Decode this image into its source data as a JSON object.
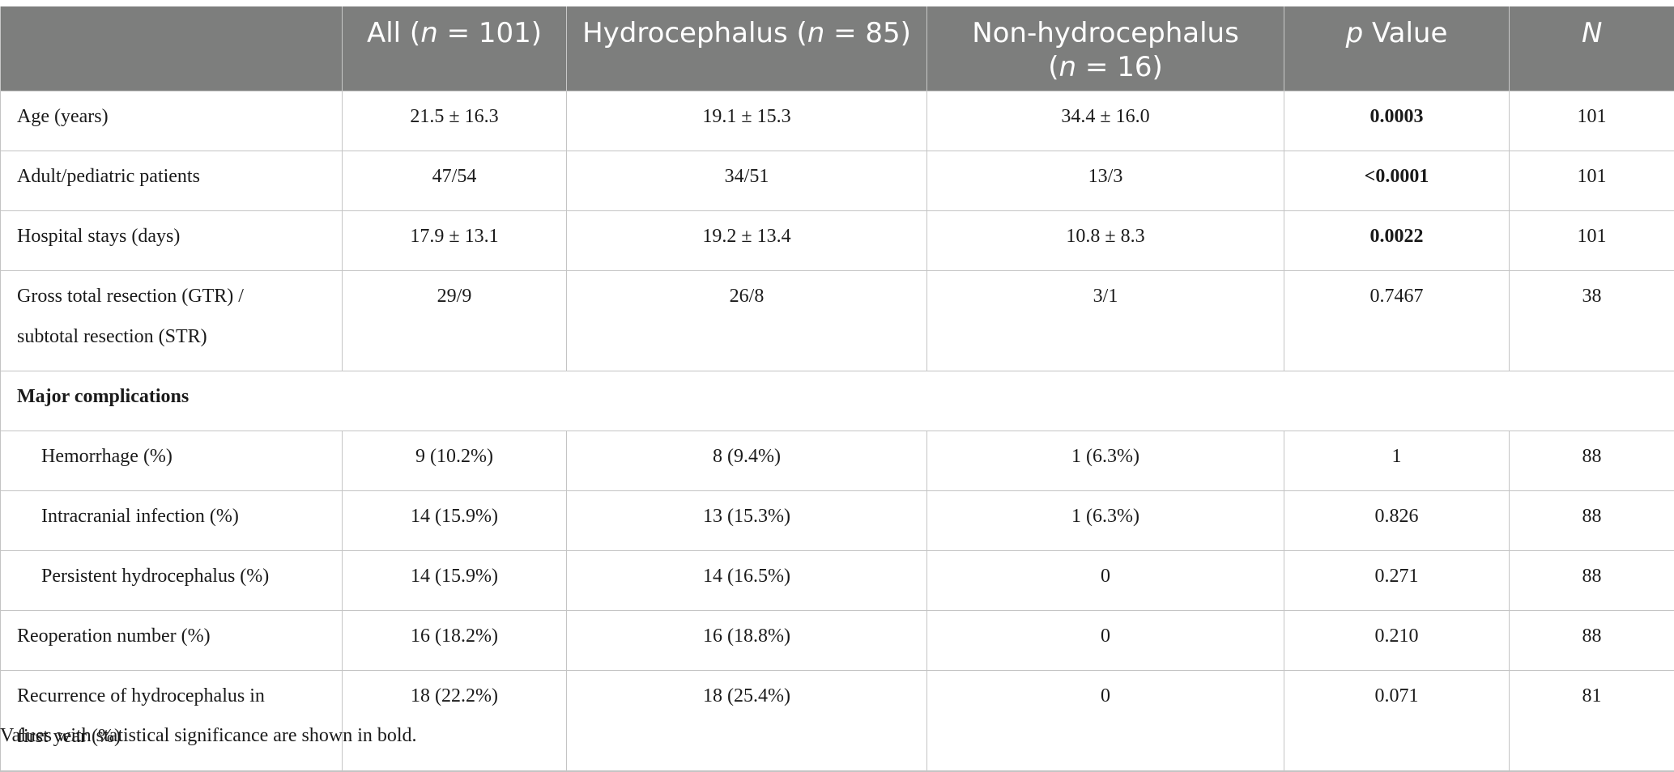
{
  "header": {
    "col0": "",
    "col1_pre": "All (",
    "col1_n": "n",
    "col1_post": " = 101)",
    "col2_pre": "Hydrocephalus (",
    "col2_n": "n",
    "col2_post": " = 85)",
    "col3_line1": "Non-hydrocephalus",
    "col3_pre": "(",
    "col3_n": "n",
    "col3_post": " = 16)",
    "col4_p": "p",
    "col4_rest": " Value",
    "col5": "N"
  },
  "rows": [
    {
      "label": "Age (years)",
      "all": "21.5 ± 16.3",
      "hydro": "19.1 ± 15.3",
      "non": "34.4 ± 16.0",
      "p": "0.0003",
      "n": "101"
    },
    {
      "label": "Adult/pediatric patients",
      "all": "47/54",
      "hydro": "34/51",
      "non": "13/3",
      "p": "<0.0001",
      "n": "101"
    },
    {
      "label": "Hospital stays (days)",
      "all": "17.9 ± 13.1",
      "hydro": "19.2 ± 13.4",
      "non": "10.8 ± 8.3",
      "p": "0.0022",
      "n": "101"
    },
    {
      "label_line1": "Gross total resection (GTR) /",
      "label_line2": "subtotal resection (STR)",
      "all": "29/9",
      "hydro": "26/8",
      "non": "3/1",
      "p": "0.7467",
      "n": "38"
    },
    {
      "section": "Major complications"
    },
    {
      "label": "Hemorrhage (%)",
      "all": "9 (10.2%)",
      "hydro": "8 (9.4%)",
      "non": "1 (6.3%)",
      "p": "1",
      "n": "88"
    },
    {
      "label": "Intracranial infection (%)",
      "all": "14 (15.9%)",
      "hydro": "13 (15.3%)",
      "non": "1 (6.3%)",
      "p": "0.826",
      "n": "88"
    },
    {
      "label": "Persistent hydrocephalus (%)",
      "all": "14 (15.9%)",
      "hydro": "14 (16.5%)",
      "non": "0",
      "p": "0.271",
      "n": "88"
    },
    {
      "label": "Reoperation number (%)",
      "all": "16 (18.2%)",
      "hydro": "16 (18.8%)",
      "non": "0",
      "p": "0.210",
      "n": "88"
    },
    {
      "label_line1": "Recurrence of hydrocephalus in",
      "label_line2": "first year (%)",
      "all": "18 (22.2%)",
      "hydro": "18 (25.4%)",
      "non": "0",
      "p": "0.071",
      "n": "81"
    }
  ],
  "footnote": "Values with statistical significance are shown in bold.",
  "colors": {
    "header_bg": "#7d7e7d",
    "header_text": "#ffffff",
    "border": "#c4c4c4"
  }
}
